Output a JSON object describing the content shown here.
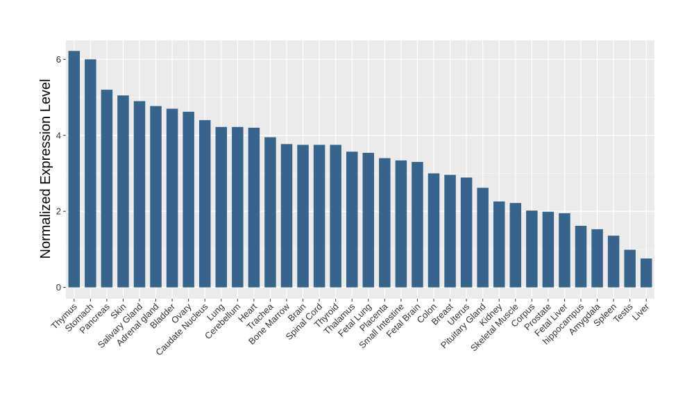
{
  "chart_data": {
    "type": "bar",
    "title": "",
    "xlabel": "",
    "ylabel": "Normalized Expression Level",
    "ylim": [
      -0.3,
      6.5
    ],
    "yticks": [
      0,
      2,
      4,
      6
    ],
    "grid": true,
    "bar_color": "#36648b",
    "panel_color": "#ebebeb",
    "categories": [
      "Thymus",
      "Stomach",
      "Pancreas",
      "Skin",
      "Salivary Gland",
      "Adrenal gland",
      "Bladder",
      "Ovary",
      "Caudate Nucleus",
      "Lung",
      "Cerebellum",
      "Heart",
      "Trachea",
      "Bone Marrow",
      "Brain",
      "Spinal Cord",
      "Thyroid",
      "Thalamus",
      "Fetal Lung",
      "Placenta",
      "Small Intestine",
      "Fetal Brain",
      "Colon",
      "Breast",
      "Uterus",
      "Pituitary Gland",
      "Kidney",
      "Skeletal Muscle",
      "Corpus",
      "Prostate",
      "Fetal Liver",
      "hippocampus",
      "Amygdala",
      "Spleen",
      "Testis",
      "Liver"
    ],
    "values": [
      6.22,
      6.0,
      5.2,
      5.05,
      4.9,
      4.77,
      4.7,
      4.62,
      4.4,
      4.22,
      4.22,
      4.2,
      3.95,
      3.77,
      3.75,
      3.75,
      3.75,
      3.57,
      3.54,
      3.4,
      3.34,
      3.3,
      3.0,
      2.96,
      2.89,
      2.62,
      2.26,
      2.22,
      2.02,
      1.99,
      1.95,
      1.62,
      1.53,
      1.36,
      0.99,
      0.76
    ]
  }
}
